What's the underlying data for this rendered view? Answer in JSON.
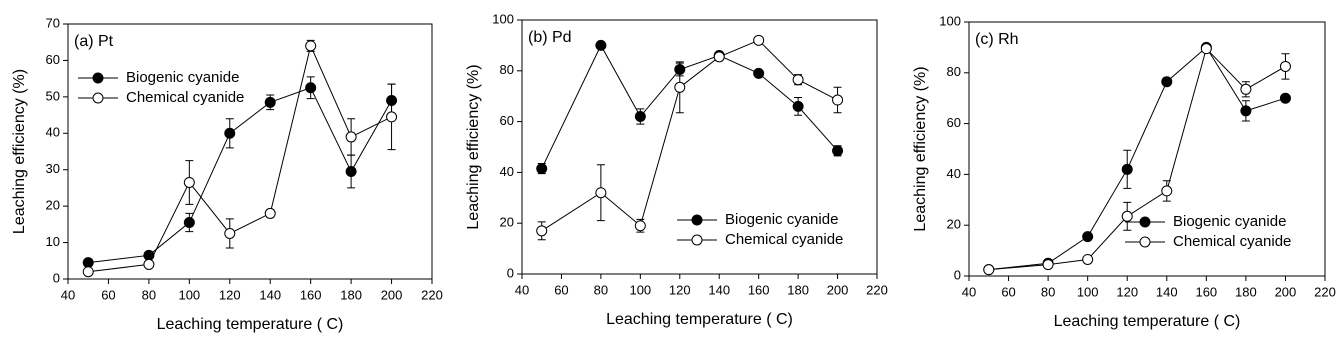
{
  "chart_data": [
    {
      "type": "line",
      "annotation": "(a) Pt",
      "xlabel": "Leaching temperature ( C)",
      "ylabel": "Leaching efficiency (%)",
      "x": [
        50,
        80,
        100,
        120,
        140,
        160,
        180,
        200
      ],
      "xlim": [
        40,
        220
      ],
      "xticks": [
        40,
        60,
        80,
        100,
        120,
        140,
        160,
        180,
        200,
        220
      ],
      "ylim": [
        0,
        70
      ],
      "yticks": [
        0,
        10,
        20,
        30,
        40,
        50,
        60,
        70
      ],
      "legend": "upper left",
      "series": [
        {
          "name": "Biogenic cyanide",
          "color": "#000000",
          "fill": "#000000",
          "values": [
            4.5,
            6.5,
            15.5,
            40,
            48.5,
            52.5,
            29.5,
            49
          ],
          "errors": [
            null,
            null,
            2.5,
            4,
            2,
            3,
            4.5,
            4.5
          ]
        },
        {
          "name": "Chemical cyanide",
          "color": "#000000",
          "fill": "#ffffff",
          "values": [
            2,
            4,
            26.5,
            12.5,
            18,
            64,
            39,
            44.5
          ],
          "errors": [
            null,
            null,
            6,
            4,
            1,
            1.5,
            5,
            9
          ]
        }
      ]
    },
    {
      "type": "line",
      "annotation": "(b) Pd",
      "xlabel": "Leaching temperature ( C)",
      "ylabel": "Leaching efficiency (%)",
      "x": [
        50,
        80,
        100,
        120,
        140,
        160,
        180,
        200
      ],
      "xlim": [
        40,
        220
      ],
      "xticks": [
        40,
        60,
        80,
        100,
        120,
        140,
        160,
        180,
        200,
        220
      ],
      "ylim": [
        0,
        100
      ],
      "yticks": [
        0,
        20,
        40,
        60,
        80,
        100
      ],
      "legend": "lower right",
      "series": [
        {
          "name": "Biogenic cyanide",
          "color": "#000000",
          "fill": "#000000",
          "values": [
            41.5,
            90,
            62,
            80.5,
            86,
            79,
            66,
            48.5
          ],
          "errors": [
            2,
            null,
            3,
            2.5,
            null,
            null,
            3.5,
            2
          ]
        },
        {
          "name": "Chemical cyanide",
          "color": "#000000",
          "fill": "#ffffff",
          "values": [
            17,
            32,
            19,
            73.5,
            85.5,
            92,
            76.5,
            68.5
          ],
          "errors": [
            3.5,
            11,
            2.5,
            10,
            1.5,
            null,
            2,
            5
          ]
        }
      ]
    },
    {
      "type": "line",
      "annotation": "(c) Rh",
      "xlabel": "Leaching temperature ( C)",
      "ylabel": "Leaching efficiency (%)",
      "x": [
        50,
        80,
        100,
        120,
        140,
        160,
        180,
        200
      ],
      "xlim": [
        40,
        220
      ],
      "xticks": [
        40,
        60,
        80,
        100,
        120,
        140,
        160,
        180,
        200,
        220
      ],
      "ylim": [
        0,
        100
      ],
      "yticks": [
        0,
        20,
        40,
        60,
        80,
        100
      ],
      "legend": "lower right",
      "series": [
        {
          "name": "Biogenic cyanide",
          "color": "#000000",
          "fill": "#000000",
          "values": [
            2.5,
            5,
            15.5,
            42,
            76.5,
            90,
            65,
            70
          ],
          "errors": [
            null,
            null,
            null,
            7.5,
            null,
            null,
            4,
            null
          ]
        },
        {
          "name": "Chemical cyanide",
          "color": "#000000",
          "fill": "#ffffff",
          "values": [
            2.5,
            4.5,
            6.5,
            23.5,
            33.5,
            89.5,
            73.5,
            82.5
          ],
          "errors": [
            null,
            null,
            null,
            5.5,
            4,
            null,
            3,
            5
          ]
        }
      ]
    }
  ]
}
